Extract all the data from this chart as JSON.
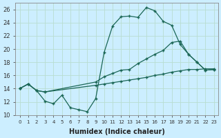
{
  "xlabel": "Humidex (Indice chaleur)",
  "bg_color": "#cceeff",
  "grid_color": "#b8ddd0",
  "line_color": "#1a6655",
  "xlim_min": -0.5,
  "xlim_max": 23.5,
  "ylim_min": 10,
  "ylim_max": 27,
  "yticks": [
    10,
    12,
    14,
    16,
    18,
    20,
    22,
    24,
    26
  ],
  "xticks": [
    0,
    1,
    2,
    3,
    4,
    5,
    6,
    7,
    8,
    9,
    10,
    11,
    12,
    13,
    14,
    15,
    16,
    17,
    18,
    19,
    20,
    21,
    22,
    23
  ],
  "s1_x": [
    0,
    1,
    2,
    3,
    4,
    5,
    6,
    7,
    8,
    9,
    10,
    11,
    12,
    13,
    14,
    15,
    16,
    17,
    18,
    19,
    20,
    21,
    22,
    23
  ],
  "s1_y": [
    14.0,
    14.7,
    13.7,
    12.1,
    11.7,
    13.0,
    11.1,
    10.8,
    10.5,
    12.5,
    19.5,
    23.5,
    24.9,
    25.0,
    24.8,
    26.3,
    25.8,
    24.2,
    23.6,
    20.7,
    19.2,
    18.0,
    16.8,
    16.9
  ],
  "s2_x": [
    0,
    1,
    2,
    3,
    9,
    10,
    11,
    12,
    13,
    14,
    15,
    16,
    17,
    18,
    19,
    20,
    21,
    22,
    23
  ],
  "s2_y": [
    14.0,
    14.7,
    13.7,
    13.5,
    15.0,
    15.8,
    16.3,
    16.8,
    16.9,
    17.8,
    18.5,
    19.2,
    19.8,
    21.0,
    21.2,
    19.2,
    18.0,
    16.8,
    16.9
  ],
  "s3_x": [
    0,
    1,
    2,
    3,
    9,
    10,
    11,
    12,
    13,
    14,
    15,
    16,
    17,
    18,
    19,
    20,
    21,
    22,
    23
  ],
  "s3_y": [
    14.0,
    14.7,
    13.7,
    13.5,
    14.5,
    14.7,
    14.9,
    15.1,
    15.3,
    15.5,
    15.7,
    16.0,
    16.2,
    16.5,
    16.7,
    16.9,
    16.9,
    17.0,
    17.0
  ]
}
